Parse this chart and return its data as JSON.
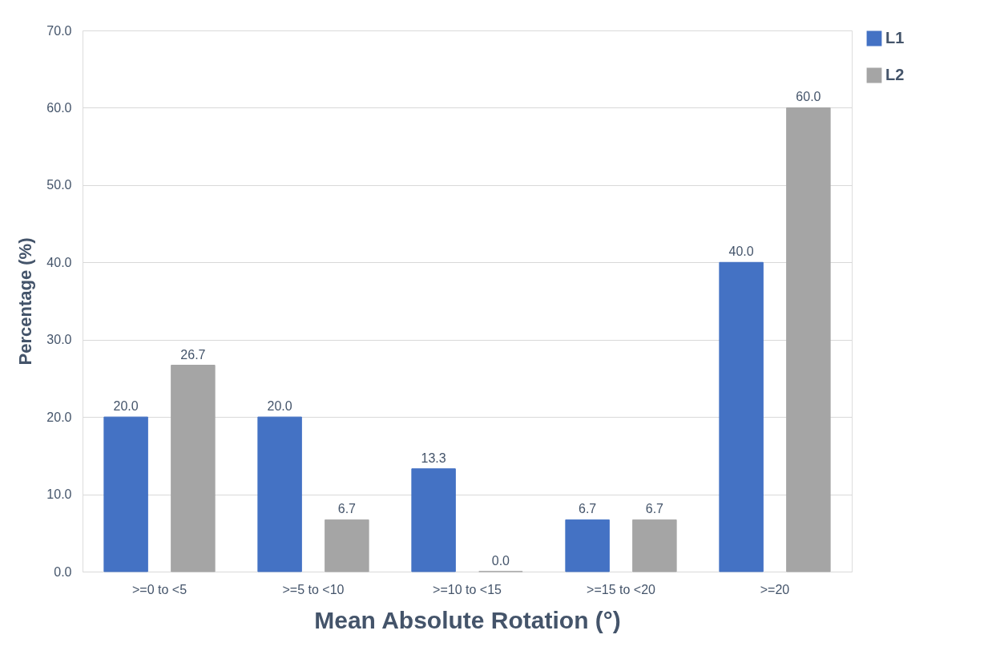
{
  "chart_data": {
    "type": "bar",
    "xlabel": "Mean Absolute Rotation (°)",
    "ylabel": "Percentage (%)",
    "categories": [
      ">=0 to <5",
      ">=5 to <10",
      ">=10 to <15",
      ">=15 to <20",
      ">=20"
    ],
    "series": [
      {
        "name": "L1",
        "color": "#4472c4",
        "values": [
          20.0,
          20.0,
          13.3,
          6.7,
          40.0
        ],
        "value_labels": [
          "20.0",
          "20.0",
          "13.3",
          "6.7",
          "40.0"
        ]
      },
      {
        "name": "L2",
        "color": "#a5a5a5",
        "values": [
          26.7,
          6.7,
          0.0,
          6.7,
          60.0
        ],
        "value_labels": [
          "26.7",
          "6.7",
          "0.0",
          "6.7",
          "60.0"
        ]
      }
    ],
    "ylim": [
      0,
      70
    ],
    "yticks": [
      {
        "value": 0,
        "label": "0.0"
      },
      {
        "value": 10,
        "label": "10.0"
      },
      {
        "value": 20,
        "label": "20.0"
      },
      {
        "value": 30,
        "label": "30.0"
      },
      {
        "value": 40,
        "label": "40.0"
      },
      {
        "value": 50,
        "label": "50.0"
      },
      {
        "value": 60,
        "label": "60.0"
      },
      {
        "value": 70,
        "label": "70.0"
      }
    ],
    "grid": "y",
    "legend": "right"
  }
}
